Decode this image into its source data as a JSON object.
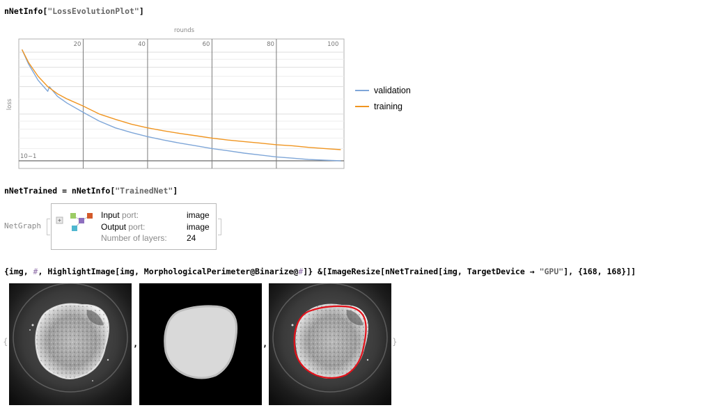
{
  "cells": {
    "loss_plot_cmd": {
      "head": "nNetInfo[",
      "arg": "\"LossEvolutionPlot\"",
      "tail": "]"
    },
    "trained_cmd": {
      "head": "nNetTrained = nNetInfo[",
      "arg": "\"TrainedNet\"",
      "tail": "]"
    },
    "highlight_cmd": {
      "part1": "{img, ",
      "slot1": "#",
      "part2": ", HighlightImage[img, MorphologicalPerimeter@Binarize@",
      "slot2": "#",
      "part3": "]} &[ImageResize[nNetTrained[img, TargetDevice → ",
      "arg": "\"GPU\"",
      "part4": "], {168, 168}]]"
    }
  },
  "legend": [
    {
      "label": "validation",
      "color": "#7ea6d8"
    },
    {
      "label": "training",
      "color": "#f09520"
    }
  ],
  "netgraph": {
    "label": "NetGraph",
    "rows": [
      {
        "key_main": "Input",
        "key_muted": " port:",
        "value": "image"
      },
      {
        "key_main": "Output",
        "key_muted": " port:",
        "value": "image"
      },
      {
        "key_main": "",
        "key_muted": "Number of layers:",
        "value": "24"
      }
    ],
    "icon_colors": [
      "#9ccc65",
      "#8e6fbf",
      "#d35a2a",
      "#4fb7cf"
    ]
  },
  "output_list": {
    "open": "{",
    "separator": ",",
    "close": "}"
  },
  "chart_data": {
    "type": "line",
    "xlabel": "rounds",
    "ylabel": "loss",
    "x_ticks": [
      20,
      40,
      60,
      80,
      100
    ],
    "xlim": [
      0,
      101
    ],
    "y_scale": "log",
    "y_tick_label": "10−1",
    "grid": true,
    "legend_position": "right",
    "series": [
      {
        "name": "validation",
        "color": "#7ea6d8",
        "x": [
          1,
          3,
          6,
          9,
          9.5,
          12,
          15,
          20,
          25,
          30,
          35,
          40,
          45,
          50,
          55,
          60,
          65,
          70,
          75,
          80,
          85,
          90,
          95,
          100
        ],
        "y": [
          0.52,
          0.42,
          0.33,
          0.28,
          0.3,
          0.26,
          0.235,
          0.205,
          0.18,
          0.163,
          0.152,
          0.143,
          0.136,
          0.13,
          0.125,
          0.12,
          0.116,
          0.112,
          0.109,
          0.106,
          0.104,
          0.102,
          0.101,
          0.1
        ]
      },
      {
        "name": "training",
        "color": "#f09520",
        "x": [
          1,
          3,
          6,
          9,
          12,
          15,
          20,
          25,
          30,
          35,
          40,
          45,
          50,
          55,
          60,
          65,
          70,
          75,
          80,
          85,
          90,
          95,
          100
        ],
        "y": [
          0.52,
          0.43,
          0.35,
          0.3,
          0.27,
          0.25,
          0.225,
          0.2,
          0.185,
          0.172,
          0.163,
          0.156,
          0.15,
          0.145,
          0.14,
          0.136,
          0.133,
          0.13,
          0.127,
          0.125,
          0.122,
          0.12,
          0.118
        ]
      }
    ]
  }
}
